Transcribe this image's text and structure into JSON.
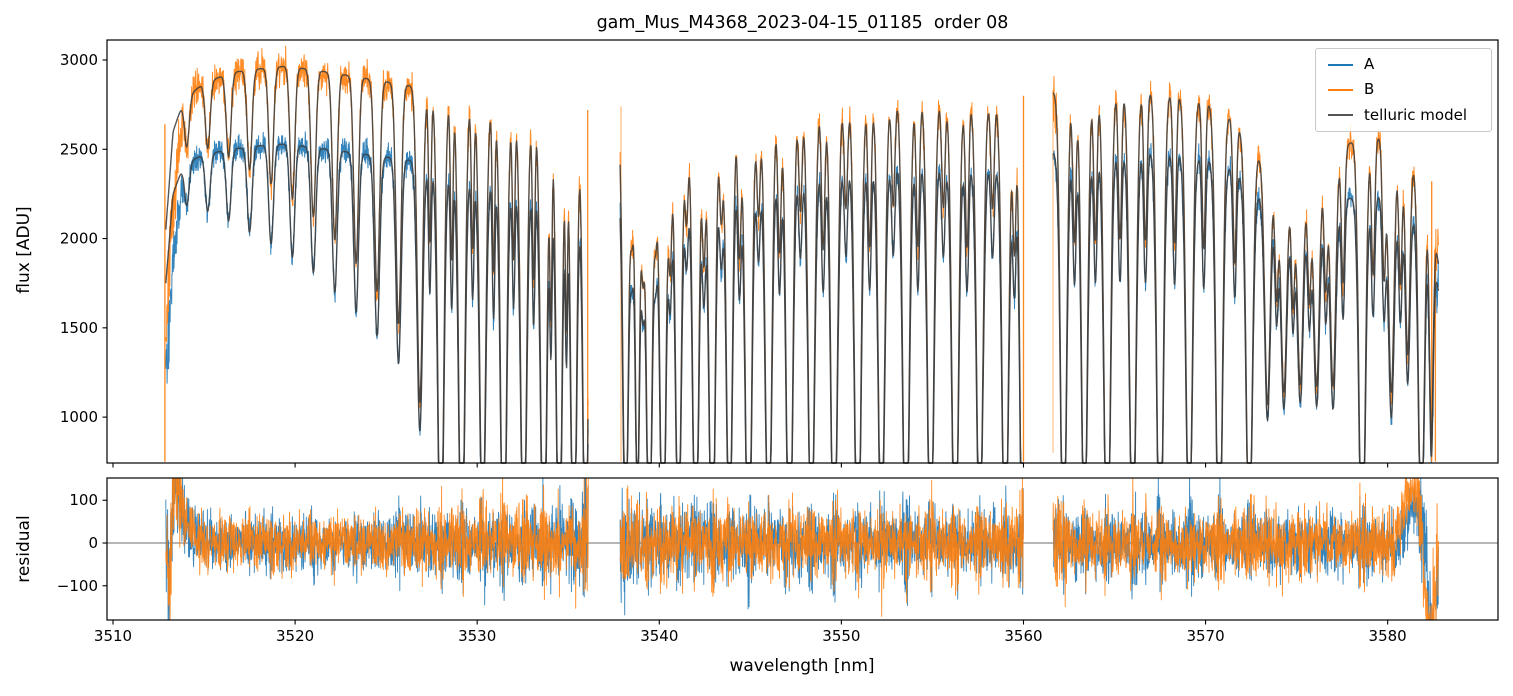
{
  "chart_data": {
    "type": "line",
    "title": "gam_Mus_M4368_2023-04-15_01185  order 08",
    "xlabel": "wavelength [nm]",
    "xticks": [
      3510,
      3520,
      3530,
      3540,
      3550,
      3560,
      3570,
      3580
    ],
    "xlim": [
      3509.67,
      3586.06
    ],
    "panels": [
      {
        "name": "flux",
        "ylabel": "flux [ADU]",
        "yticks": [
          1000,
          1500,
          2000,
          2500,
          3000
        ],
        "ylim": [
          743,
          3112
        ],
        "grid": false
      },
      {
        "name": "residual",
        "ylabel": "residual",
        "yticks": [
          -100,
          0,
          100
        ],
        "ylim": [
          -180,
          152
        ],
        "zero_line": true,
        "grid": false
      }
    ],
    "legend": {
      "position": "upper right",
      "entries": [
        {
          "label": "A",
          "color": "#1f77b4"
        },
        {
          "label": "B",
          "color": "#ff7f0e"
        },
        {
          "label": "telluric model",
          "color": "#555555"
        }
      ]
    },
    "model_color": "#3d3d3d",
    "segments": [
      [
        3512.9,
        3536.1
      ],
      [
        3537.85,
        3560.0
      ],
      [
        3561.62,
        3582.8
      ]
    ],
    "noise": {
      "flux_a": 36,
      "flux_b": 48,
      "residual": 30
    },
    "ramp": {
      "x0": 3512.85,
      "x1": 3513.95,
      "f0": 0.72
    },
    "edge_boosts": [
      [
        3512.9,
        1.9,
        0.5
      ],
      [
        3536.1,
        0.7,
        0.3
      ],
      [
        3537.85,
        0.7,
        0.3
      ],
      [
        3560.0,
        0.6,
        0.3
      ],
      [
        3561.62,
        0.6,
        0.3
      ],
      [
        3582.8,
        1.7,
        0.5
      ]
    ],
    "series": [
      {
        "label": "A",
        "color": "#1f77b4",
        "continuum": [
          [
            3512.9,
            1750
          ],
          [
            3513.3,
            2250
          ],
          [
            3513.9,
            2420
          ],
          [
            3515,
            2470
          ],
          [
            3516.5,
            2500
          ],
          [
            3518,
            2520
          ],
          [
            3519.5,
            2530
          ],
          [
            3521,
            2510
          ],
          [
            3522.5,
            2490
          ],
          [
            3524,
            2470
          ],
          [
            3525.5,
            2450
          ],
          [
            3527,
            2430
          ],
          [
            3528.5,
            2400
          ],
          [
            3530,
            2370
          ],
          [
            3531.5,
            2350
          ],
          [
            3533,
            2330
          ],
          [
            3534.5,
            2320
          ],
          [
            3536.1,
            2310
          ],
          [
            3537.85,
            2400
          ],
          [
            3539.5,
            2390
          ],
          [
            3541.5,
            2390
          ],
          [
            3543.5,
            2400
          ],
          [
            3545.5,
            2415
          ],
          [
            3547.5,
            2425
          ],
          [
            3549.5,
            2435
          ],
          [
            3551.5,
            2445
          ],
          [
            3553.5,
            2440
          ],
          [
            3555.5,
            2435
          ],
          [
            3557.5,
            2430
          ],
          [
            3560,
            2420
          ],
          [
            3561.6,
            2480
          ],
          [
            3563.5,
            2505
          ],
          [
            3565,
            2510
          ],
          [
            3566.5,
            2500
          ],
          [
            3568,
            2485
          ],
          [
            3569.5,
            2465
          ],
          [
            3571,
            2420
          ],
          [
            3572.3,
            2330
          ],
          [
            3573.4,
            2180
          ],
          [
            3574.5,
            2070
          ],
          [
            3575.5,
            2080
          ],
          [
            3576.5,
            2140
          ],
          [
            3577.5,
            2210
          ],
          [
            3578.6,
            2250
          ],
          [
            3579.6,
            2230
          ],
          [
            3580.6,
            2190
          ],
          [
            3581.6,
            2120
          ],
          [
            3582.4,
            1950
          ],
          [
            3582.8,
            1700
          ]
        ]
      },
      {
        "label": "B",
        "color": "#ff7f0e",
        "continuum": [
          [
            3512.9,
            2050
          ],
          [
            3513.3,
            2600
          ],
          [
            3513.9,
            2780
          ],
          [
            3515,
            2870
          ],
          [
            3516.5,
            2930
          ],
          [
            3518,
            2950
          ],
          [
            3519.5,
            2965
          ],
          [
            3521,
            2945
          ],
          [
            3522.5,
            2920
          ],
          [
            3524,
            2895
          ],
          [
            3525.5,
            2870
          ],
          [
            3527,
            2845
          ],
          [
            3528.5,
            2810
          ],
          [
            3530,
            2780
          ],
          [
            3531.5,
            2750
          ],
          [
            3533,
            2720
          ],
          [
            3534.5,
            2700
          ],
          [
            3536.1,
            2690
          ],
          [
            3537.85,
            2740
          ],
          [
            3539.5,
            2720
          ],
          [
            3541.5,
            2720
          ],
          [
            3543.5,
            2730
          ],
          [
            3545.5,
            2745
          ],
          [
            3547.5,
            2760
          ],
          [
            3549.5,
            2775
          ],
          [
            3551.5,
            2790
          ],
          [
            3553.5,
            2800
          ],
          [
            3555.5,
            2790
          ],
          [
            3557.5,
            2780
          ],
          [
            3560,
            2765
          ],
          [
            3561.6,
            2820
          ],
          [
            3563.5,
            2845
          ],
          [
            3565,
            2850
          ],
          [
            3566.5,
            2840
          ],
          [
            3568,
            2820
          ],
          [
            3569.5,
            2790
          ],
          [
            3571,
            2720
          ],
          [
            3572.3,
            2570
          ],
          [
            3573.4,
            2380
          ],
          [
            3574.5,
            2260
          ],
          [
            3575.5,
            2280
          ],
          [
            3576.5,
            2390
          ],
          [
            3577.5,
            2500
          ],
          [
            3578.6,
            2590
          ],
          [
            3579.6,
            2560
          ],
          [
            3580.6,
            2500
          ],
          [
            3581.6,
            2400
          ],
          [
            3582.4,
            2150
          ],
          [
            3582.8,
            1850
          ]
        ]
      }
    ],
    "telluric_lines": [
      [
        3514.05,
        0.1,
        0.13
      ],
      [
        3515.2,
        0.13,
        0.13
      ],
      [
        3516.35,
        0.16,
        0.13
      ],
      [
        3517.5,
        0.19,
        0.13
      ],
      [
        3518.68,
        0.22,
        0.13
      ],
      [
        3519.85,
        0.25,
        0.13
      ],
      [
        3521.0,
        0.28,
        0.13
      ],
      [
        3522.18,
        0.32,
        0.13
      ],
      [
        3523.35,
        0.36,
        0.13
      ],
      [
        3524.5,
        0.41,
        0.14
      ],
      [
        3525.68,
        0.47,
        0.14
      ],
      [
        3526.85,
        0.62,
        0.15
      ],
      [
        3528.0,
        0.97,
        0.16
      ],
      [
        3529.15,
        0.99,
        0.16
      ],
      [
        3530.3,
        0.9,
        0.16
      ],
      [
        3531.45,
        1.0,
        0.16
      ],
      [
        3532.55,
        0.93,
        0.16
      ],
      [
        3533.65,
        1.0,
        0.16
      ],
      [
        3534.5,
        0.98,
        0.15
      ],
      [
        3535.3,
        1.0,
        0.15
      ],
      [
        3535.95,
        1.0,
        0.14
      ],
      [
        3527.4,
        0.3,
        0.07
      ],
      [
        3528.6,
        0.33,
        0.07
      ],
      [
        3529.75,
        0.3,
        0.07
      ],
      [
        3530.9,
        0.34,
        0.07
      ],
      [
        3532.0,
        0.31,
        0.07
      ],
      [
        3533.1,
        0.35,
        0.07
      ],
      [
        3534.05,
        0.4,
        0.06
      ],
      [
        3534.9,
        0.42,
        0.06
      ],
      [
        3538.15,
        0.88,
        0.15
      ],
      [
        3538.8,
        0.8,
        0.12
      ],
      [
        3539.45,
        0.95,
        0.15
      ],
      [
        3540.2,
        0.97,
        0.16
      ],
      [
        3541.05,
        0.88,
        0.16
      ],
      [
        3542.0,
        0.96,
        0.16
      ],
      [
        3542.9,
        1.0,
        0.16
      ],
      [
        3543.85,
        0.9,
        0.16
      ],
      [
        3544.9,
        1.0,
        0.17
      ],
      [
        3546.0,
        0.93,
        0.17
      ],
      [
        3547.15,
        1.0,
        0.17
      ],
      [
        3548.35,
        0.91,
        0.17
      ],
      [
        3549.6,
        0.98,
        0.17
      ],
      [
        3550.9,
        1.0,
        0.17
      ],
      [
        3552.2,
        0.92,
        0.17
      ],
      [
        3553.55,
        1.0,
        0.17
      ],
      [
        3554.9,
        0.94,
        0.17
      ],
      [
        3556.25,
        1.0,
        0.17
      ],
      [
        3557.6,
        0.91,
        0.17
      ],
      [
        3559.0,
        0.97,
        0.17
      ],
      [
        3559.95,
        1.0,
        0.14
      ],
      [
        3538.5,
        0.22,
        0.09
      ],
      [
        3539.1,
        0.3,
        0.09
      ],
      [
        3539.8,
        0.22,
        0.09
      ],
      [
        3540.6,
        0.3,
        0.09
      ],
      [
        3541.5,
        0.22,
        0.09
      ],
      [
        3542.45,
        0.3,
        0.09
      ],
      [
        3543.4,
        0.22,
        0.09
      ],
      [
        3544.4,
        0.3,
        0.09
      ],
      [
        3545.45,
        0.22,
        0.09
      ],
      [
        3546.6,
        0.3,
        0.09
      ],
      [
        3547.75,
        0.22,
        0.09
      ],
      [
        3549.0,
        0.3,
        0.09
      ],
      [
        3550.25,
        0.22,
        0.09
      ],
      [
        3551.55,
        0.3,
        0.09
      ],
      [
        3552.85,
        0.22,
        0.09
      ],
      [
        3554.2,
        0.3,
        0.09
      ],
      [
        3555.6,
        0.22,
        0.09
      ],
      [
        3556.9,
        0.3,
        0.09
      ],
      [
        3558.3,
        0.22,
        0.09
      ],
      [
        3559.5,
        0.3,
        0.09
      ],
      [
        3562.2,
        0.96,
        0.16
      ],
      [
        3563.35,
        0.9,
        0.16
      ],
      [
        3564.6,
        1.0,
        0.17
      ],
      [
        3566.0,
        0.94,
        0.17
      ],
      [
        3567.5,
        1.0,
        0.17
      ],
      [
        3569.1,
        0.91,
        0.17
      ],
      [
        3570.75,
        0.98,
        0.17
      ],
      [
        3572.4,
        0.88,
        0.17
      ],
      [
        3573.4,
        0.55,
        0.15
      ],
      [
        3574.3,
        0.5,
        0.15
      ],
      [
        3575.2,
        0.48,
        0.15
      ],
      [
        3576.1,
        0.5,
        0.15
      ],
      [
        3577.0,
        0.52,
        0.15
      ],
      [
        3578.6,
        0.96,
        0.17
      ],
      [
        3580.2,
        0.55,
        0.15
      ],
      [
        3581.1,
        0.45,
        0.12
      ],
      [
        3581.85,
        0.88,
        0.15
      ],
      [
        3582.4,
        0.6,
        0.1
      ],
      [
        3562.8,
        0.3,
        0.09
      ],
      [
        3563.95,
        0.3,
        0.09
      ],
      [
        3565.3,
        0.3,
        0.09
      ],
      [
        3566.7,
        0.3,
        0.09
      ],
      [
        3568.3,
        0.3,
        0.09
      ],
      [
        3569.9,
        0.3,
        0.09
      ],
      [
        3571.6,
        0.3,
        0.09
      ],
      [
        3573.9,
        0.28,
        0.09
      ],
      [
        3574.8,
        0.28,
        0.09
      ],
      [
        3575.7,
        0.28,
        0.09
      ],
      [
        3576.6,
        0.28,
        0.09
      ],
      [
        3577.55,
        0.3,
        0.09
      ],
      [
        3579.2,
        0.3,
        0.09
      ],
      [
        3579.8,
        0.3,
        0.09
      ],
      [
        3580.7,
        0.3,
        0.09
      ]
    ],
    "spikes": [
      [
        3512.85,
        750,
        2640,
        0.95
      ],
      [
        3536.07,
        750,
        2720,
        0.9
      ],
      [
        3537.9,
        750,
        2740,
        0.5
      ],
      [
        3560.0,
        750,
        2800,
        0.95
      ],
      [
        3561.62,
        800,
        2830,
        0.45
      ],
      [
        3582.42,
        750,
        2320,
        0.95
      ],
      [
        3582.62,
        750,
        1950,
        0.9
      ]
    ],
    "residual_features": {
      "A": [
        [
          3513.12,
          0.07,
          -160
        ],
        [
          3513.4,
          0.14,
          140
        ],
        [
          3513.85,
          0.35,
          55
        ],
        [
          3581.5,
          0.38,
          95
        ],
        [
          3582.45,
          0.2,
          -230
        ]
      ],
      "B": [
        [
          3513.1,
          0.07,
          -180
        ],
        [
          3513.38,
          0.14,
          160
        ],
        [
          3513.85,
          0.35,
          65
        ],
        [
          3581.35,
          0.45,
          135
        ],
        [
          3582.35,
          0.22,
          -270
        ]
      ]
    }
  }
}
